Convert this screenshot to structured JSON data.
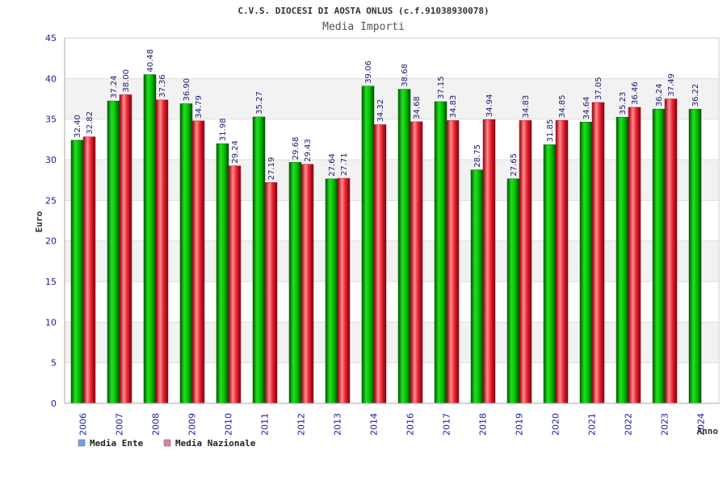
{
  "chart_data": {
    "type": "bar",
    "title": "C.V.S. DIOCESI DI AOSTA ONLUS (c.f.91038930078)",
    "subtitle": "Media Importi",
    "xlabel": "Anno",
    "ylabel": "Euro",
    "ylim": [
      0,
      45
    ],
    "yticks": [
      0,
      5,
      10,
      15,
      20,
      25,
      30,
      35,
      40,
      45
    ],
    "grid": true,
    "legend_position": "bottom-left",
    "categories": [
      "2006",
      "2007",
      "2008",
      "2009",
      "2010",
      "2011",
      "2012",
      "2013",
      "2014",
      "2016",
      "2017",
      "2018",
      "2019",
      "2020",
      "2021",
      "2022",
      "2023",
      "2024"
    ],
    "series": [
      {
        "name": "Media Ente",
        "color": "#00c000",
        "legend_color": "#6aa6e8",
        "values": [
          32.4,
          37.24,
          40.48,
          36.9,
          31.98,
          35.27,
          29.68,
          27.64,
          39.06,
          38.68,
          37.15,
          28.75,
          27.65,
          31.85,
          34.64,
          35.23,
          36.24,
          36.22
        ],
        "labels": [
          "32.40",
          "37.24",
          "40.48",
          "36.90",
          "31.98",
          "35.27",
          "29.68",
          "27.64",
          "39.06",
          "38.68",
          "37.15",
          "28.75",
          "27.65",
          "31.85",
          "34.64",
          "35.23",
          "36.24",
          "36.22"
        ]
      },
      {
        "name": "Media Nazionale",
        "color": "#e82030",
        "legend_color": "#e87aa8",
        "values": [
          32.82,
          38.0,
          37.36,
          34.79,
          29.24,
          27.19,
          29.43,
          27.71,
          34.32,
          34.68,
          34.83,
          34.94,
          34.83,
          34.85,
          37.05,
          36.46,
          37.49,
          null
        ],
        "labels": [
          "32.82",
          "38.00",
          "37.36",
          "34.79",
          "29.24",
          "27.19",
          "29.43",
          "27.71",
          "34.32",
          "34.68",
          "34.83",
          "34.94",
          "34.83",
          "34.85",
          "37.05",
          "36.46",
          "37.49",
          ""
        ]
      }
    ]
  }
}
